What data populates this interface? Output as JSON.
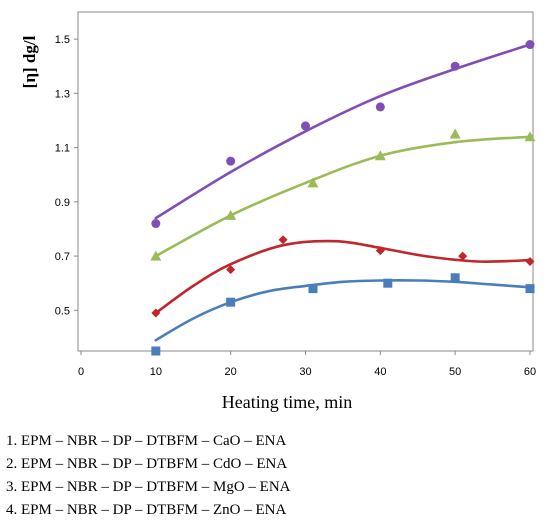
{
  "chart_data": {
    "type": "scatter",
    "title": "",
    "xlabel": "Heating time, min",
    "ylabel": "[η] dg/l",
    "xlim": [
      0,
      60
    ],
    "ylim": [
      0.35,
      1.6
    ],
    "xticks": [
      0,
      10,
      20,
      30,
      40,
      50,
      60
    ],
    "yticks": [
      0.5,
      0.7,
      0.9,
      1.1,
      1.3,
      1.5
    ],
    "grid": false,
    "legend_position": "below chart",
    "series": [
      {
        "color": "#7f4fb5",
        "marker": "circle",
        "points": [
          [
            10,
            0.82
          ],
          [
            20,
            1.05
          ],
          [
            30,
            1.18
          ],
          [
            40,
            1.25
          ],
          [
            50,
            1.4
          ],
          [
            60,
            1.48
          ]
        ],
        "trend": [
          [
            10,
            0.84
          ],
          [
            20,
            1.01
          ],
          [
            30,
            1.16
          ],
          [
            40,
            1.29
          ],
          [
            50,
            1.39
          ],
          [
            60,
            1.48
          ]
        ]
      },
      {
        "color": "#9bbb59",
        "marker": "triangle",
        "points": [
          [
            10,
            0.7
          ],
          [
            20,
            0.85
          ],
          [
            31,
            0.97
          ],
          [
            40,
            1.07
          ],
          [
            50,
            1.15
          ],
          [
            60,
            1.14
          ]
        ],
        "trend": [
          [
            10,
            0.7
          ],
          [
            20,
            0.85
          ],
          [
            30,
            0.97
          ],
          [
            40,
            1.07
          ],
          [
            50,
            1.12
          ],
          [
            60,
            1.14
          ]
        ]
      },
      {
        "color": "#c0272d",
        "marker": "diamond",
        "points": [
          [
            10,
            0.49
          ],
          [
            20,
            0.65
          ],
          [
            27,
            0.76
          ],
          [
            40,
            0.72
          ],
          [
            51,
            0.7
          ],
          [
            60,
            0.68
          ]
        ],
        "trend": [
          [
            10,
            0.49
          ],
          [
            15,
            0.59
          ],
          [
            20,
            0.67
          ],
          [
            27,
            0.74
          ],
          [
            34,
            0.755
          ],
          [
            40,
            0.73
          ],
          [
            46,
            0.7
          ],
          [
            53,
            0.68
          ],
          [
            60,
            0.685
          ]
        ]
      },
      {
        "color": "#4a7ebb",
        "marker": "square",
        "points": [
          [
            10,
            0.35
          ],
          [
            20,
            0.53
          ],
          [
            31,
            0.58
          ],
          [
            41,
            0.6
          ],
          [
            50,
            0.62
          ],
          [
            60,
            0.58
          ]
        ],
        "trend": [
          [
            10,
            0.39
          ],
          [
            15,
            0.47
          ],
          [
            20,
            0.53
          ],
          [
            25,
            0.57
          ],
          [
            30,
            0.59
          ],
          [
            35,
            0.605
          ],
          [
            40,
            0.61
          ],
          [
            45,
            0.61
          ],
          [
            50,
            0.605
          ],
          [
            55,
            0.595
          ],
          [
            60,
            0.585
          ]
        ]
      }
    ]
  },
  "legend": [
    "1. EPM – NBR – DP – DTBFM – CaO – ENA",
    "2. EPM – NBR – DP – DTBFM – CdO – ENA",
    "3. EPM – NBR – DP – DTBFM – MgO – ENA",
    "4. EPM – NBR – DP – DTBFM – ZnO – ENA"
  ]
}
